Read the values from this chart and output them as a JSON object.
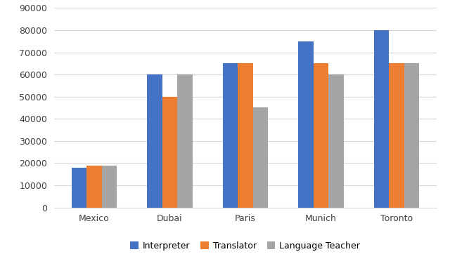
{
  "cities": [
    "Mexico",
    "Dubai",
    "Paris",
    "Munich",
    "Toronto"
  ],
  "series": {
    "Interpreter": [
      18000,
      60000,
      65000,
      75000,
      80000
    ],
    "Translator": [
      19000,
      50000,
      65000,
      65000,
      65000
    ],
    "Language Teacher": [
      19000,
      60000,
      45000,
      60000,
      65000
    ]
  },
  "colors": {
    "Interpreter": "#4472C4",
    "Translator": "#ED7D31",
    "Language Teacher": "#A5A5A5"
  },
  "ylim": [
    0,
    90000
  ],
  "yticks": [
    0,
    10000,
    20000,
    30000,
    40000,
    50000,
    60000,
    70000,
    80000,
    90000
  ],
  "bar_width": 0.2,
  "figsize": [
    6.4,
    3.79
  ],
  "dpi": 100,
  "grid_color": "#D9D9D9",
  "background_color": "#FFFFFF",
  "legend_labels": [
    "Interpreter",
    "Translator",
    "Language Teacher"
  ]
}
